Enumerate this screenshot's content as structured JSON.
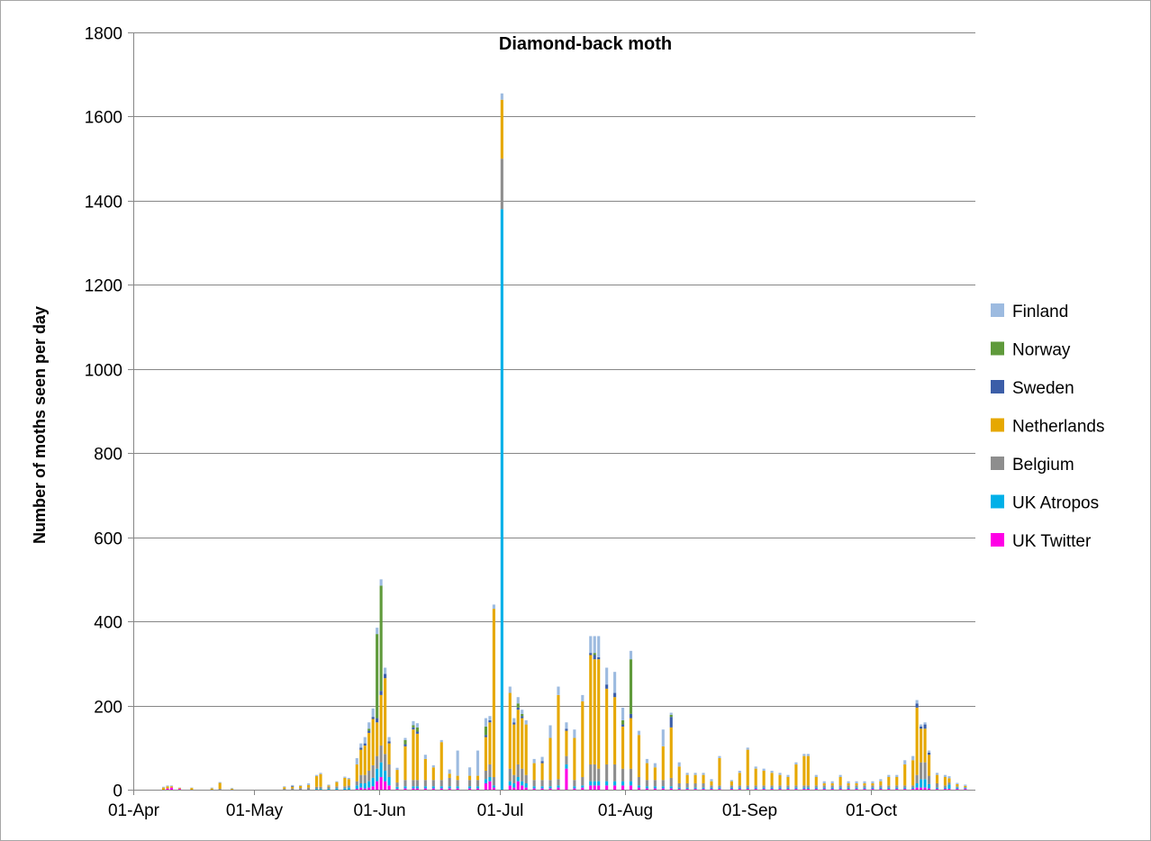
{
  "chart_data": {
    "type": "bar",
    "stacked": true,
    "title": "Diamond-back moth",
    "ylabel": "Number of moths seen per day",
    "xlabel": "",
    "ylim": [
      0,
      1800
    ],
    "yticks": [
      0,
      200,
      400,
      600,
      800,
      1000,
      1200,
      1400,
      1600,
      1800
    ],
    "xlim": [
      "01-Apr",
      "26-Oct"
    ],
    "xtick_labels": [
      "01-Apr",
      "01-May",
      "01-Jun",
      "01-Jul",
      "01-Aug",
      "01-Sep",
      "01-Oct"
    ],
    "grid": "horizontal",
    "legend_position": "right",
    "series_order": [
      "UK Twitter",
      "UK Atropos",
      "Belgium",
      "Netherlands",
      "Sweden",
      "Norway",
      "Finland"
    ],
    "legend_order": [
      "Finland",
      "Norway",
      "Sweden",
      "Netherlands",
      "Belgium",
      "UK Atropos",
      "UK Twitter"
    ],
    "colors": {
      "Finland": "#9dbbe0",
      "Norway": "#5f9a3b",
      "Sweden": "#3c5ea8",
      "Netherlands": "#e6a800",
      "Belgium": "#8e8e8e",
      "UK Atropos": "#00b0e8",
      "UK Twitter": "#ff00e6"
    },
    "days": [
      {
        "date": "08-Apr",
        "values": [
          0,
          0,
          0,
          5,
          0,
          0,
          2
        ]
      },
      {
        "date": "09-Apr",
        "values": [
          3,
          0,
          0,
          5,
          0,
          0,
          2
        ]
      },
      {
        "date": "10-Apr",
        "values": [
          5,
          0,
          0,
          3,
          0,
          0,
          2
        ]
      },
      {
        "date": "12-Apr",
        "values": [
          2,
          0,
          0,
          2,
          0,
          0,
          1
        ]
      },
      {
        "date": "15-Apr",
        "values": [
          0,
          0,
          0,
          4,
          0,
          0,
          1
        ]
      },
      {
        "date": "20-Apr",
        "values": [
          0,
          0,
          0,
          3,
          0,
          0,
          2
        ]
      },
      {
        "date": "22-Apr",
        "values": [
          0,
          0,
          2,
          14,
          0,
          0,
          2
        ]
      },
      {
        "date": "25-Apr",
        "values": [
          0,
          0,
          0,
          2,
          0,
          0,
          2
        ]
      },
      {
        "date": "08-May",
        "values": [
          0,
          0,
          2,
          4,
          0,
          0,
          2
        ]
      },
      {
        "date": "10-May",
        "values": [
          0,
          0,
          3,
          4,
          2,
          0,
          2
        ]
      },
      {
        "date": "12-May",
        "values": [
          0,
          0,
          4,
          5,
          0,
          0,
          2
        ]
      },
      {
        "date": "14-May",
        "values": [
          0,
          0,
          5,
          6,
          0,
          0,
          4
        ]
      },
      {
        "date": "16-May",
        "values": [
          0,
          2,
          5,
          25,
          0,
          0,
          3
        ]
      },
      {
        "date": "17-May",
        "values": [
          0,
          2,
          5,
          30,
          0,
          0,
          3
        ]
      },
      {
        "date": "19-May",
        "values": [
          0,
          2,
          5,
          3,
          0,
          0,
          2
        ]
      },
      {
        "date": "21-May",
        "values": [
          0,
          3,
          5,
          10,
          0,
          0,
          2
        ]
      },
      {
        "date": "23-May",
        "values": [
          0,
          3,
          5,
          20,
          0,
          0,
          3
        ]
      },
      {
        "date": "24-May",
        "values": [
          0,
          5,
          5,
          15,
          0,
          0,
          3
        ]
      },
      {
        "date": "26-May",
        "values": [
          2,
          8,
          10,
          40,
          0,
          0,
          15
        ]
      },
      {
        "date": "27-May",
        "values": [
          5,
          10,
          20,
          60,
          5,
          0,
          10
        ]
      },
      {
        "date": "28-May",
        "values": [
          3,
          12,
          20,
          70,
          5,
          0,
          15
        ]
      },
      {
        "date": "29-May",
        "values": [
          5,
          15,
          25,
          90,
          5,
          5,
          15
        ]
      },
      {
        "date": "30-May",
        "values": [
          8,
          20,
          30,
          110,
          5,
          0,
          20
        ]
      },
      {
        "date": "31-May",
        "values": [
          20,
          30,
          30,
          80,
          10,
          200,
          15
        ]
      },
      {
        "date": "01-Jun",
        "values": [
          30,
          35,
          40,
          120,
          10,
          250,
          15
        ]
      },
      {
        "date": "02-Jun",
        "values": [
          20,
          25,
          40,
          180,
          10,
          0,
          15
        ]
      },
      {
        "date": "03-Jun",
        "values": [
          10,
          20,
          30,
          50,
          5,
          0,
          10
        ]
      },
      {
        "date": "05-Jun",
        "values": [
          2,
          5,
          10,
          30,
          0,
          0,
          5
        ]
      },
      {
        "date": "07-Jun",
        "values": [
          3,
          5,
          15,
          80,
          5,
          10,
          5
        ]
      },
      {
        "date": "09-Jun",
        "values": [
          3,
          5,
          15,
          120,
          5,
          5,
          10
        ]
      },
      {
        "date": "10-Jun",
        "values": [
          3,
          5,
          15,
          110,
          5,
          10,
          10
        ]
      },
      {
        "date": "12-Jun",
        "values": [
          3,
          5,
          15,
          50,
          0,
          0,
          10
        ]
      },
      {
        "date": "14-Jun",
        "values": [
          3,
          5,
          15,
          30,
          0,
          0,
          5
        ]
      },
      {
        "date": "16-Jun",
        "values": [
          3,
          5,
          15,
          90,
          0,
          0,
          5
        ]
      },
      {
        "date": "18-Jun",
        "values": [
          3,
          5,
          20,
          10,
          0,
          0,
          10
        ]
      },
      {
        "date": "20-Jun",
        "values": [
          3,
          5,
          15,
          10,
          0,
          0,
          60
        ]
      },
      {
        "date": "23-Jun",
        "values": [
          3,
          5,
          15,
          10,
          0,
          0,
          20
        ]
      },
      {
        "date": "25-Jun",
        "values": [
          3,
          5,
          15,
          10,
          0,
          0,
          60
        ]
      },
      {
        "date": "27-Jun",
        "values": [
          15,
          10,
          20,
          80,
          5,
          20,
          20
        ]
      },
      {
        "date": "28-Jun",
        "values": [
          20,
          10,
          30,
          100,
          5,
          0,
          10
        ]
      },
      {
        "date": "29-Jun",
        "values": [
          5,
          5,
          20,
          400,
          0,
          0,
          10
        ]
      },
      {
        "date": "01-Jul",
        "values": [
          0,
          1380,
          120,
          140,
          0,
          0,
          15
        ]
      },
      {
        "date": "03-Jul",
        "values": [
          10,
          10,
          30,
          180,
          0,
          0,
          15
        ]
      },
      {
        "date": "04-Jul",
        "values": [
          5,
          10,
          20,
          120,
          5,
          0,
          10
        ]
      },
      {
        "date": "05-Jul",
        "values": [
          20,
          10,
          30,
          130,
          5,
          10,
          15
        ]
      },
      {
        "date": "06-Jul",
        "values": [
          10,
          10,
          30,
          120,
          5,
          5,
          10
        ]
      },
      {
        "date": "07-Jul",
        "values": [
          5,
          10,
          20,
          120,
          0,
          0,
          10
        ]
      },
      {
        "date": "09-Jul",
        "values": [
          3,
          5,
          15,
          40,
          0,
          0,
          10
        ]
      },
      {
        "date": "11-Jul",
        "values": [
          3,
          5,
          15,
          40,
          5,
          0,
          10
        ]
      },
      {
        "date": "13-Jul",
        "values": [
          3,
          5,
          15,
          100,
          0,
          0,
          30
        ]
      },
      {
        "date": "15-Jul",
        "values": [
          5,
          5,
          15,
          200,
          0,
          0,
          20
        ]
      },
      {
        "date": "17-Jul",
        "values": [
          50,
          10,
          20,
          60,
          5,
          0,
          15
        ]
      },
      {
        "date": "19-Jul",
        "values": [
          3,
          5,
          15,
          100,
          0,
          0,
          20
        ]
      },
      {
        "date": "21-Jul",
        "values": [
          5,
          5,
          20,
          180,
          0,
          0,
          15
        ]
      },
      {
        "date": "23-Jul",
        "values": [
          10,
          10,
          40,
          260,
          5,
          0,
          40
        ]
      },
      {
        "date": "24-Jul",
        "values": [
          10,
          10,
          40,
          250,
          10,
          5,
          40
        ]
      },
      {
        "date": "25-Jul",
        "values": [
          10,
          10,
          30,
          260,
          5,
          0,
          50
        ]
      },
      {
        "date": "27-Jul",
        "values": [
          10,
          10,
          40,
          180,
          10,
          0,
          40
        ]
      },
      {
        "date": "29-Jul",
        "values": [
          10,
          10,
          40,
          160,
          10,
          0,
          50
        ]
      },
      {
        "date": "31-Jul",
        "values": [
          10,
          10,
          30,
          100,
          5,
          10,
          30
        ]
      },
      {
        "date": "02-Aug",
        "values": [
          10,
          10,
          30,
          120,
          10,
          130,
          20
        ]
      },
      {
        "date": "04-Aug",
        "values": [
          5,
          5,
          20,
          100,
          0,
          0,
          10
        ]
      },
      {
        "date": "06-Aug",
        "values": [
          3,
          5,
          15,
          40,
          0,
          0,
          10
        ]
      },
      {
        "date": "08-Aug",
        "values": [
          3,
          5,
          15,
          30,
          0,
          0,
          10
        ]
      },
      {
        "date": "10-Aug",
        "values": [
          3,
          5,
          15,
          80,
          0,
          0,
          40
        ]
      },
      {
        "date": "12-Aug",
        "values": [
          3,
          5,
          20,
          120,
          25,
          5,
          5
        ]
      },
      {
        "date": "14-Aug",
        "values": [
          2,
          3,
          10,
          40,
          0,
          0,
          10
        ]
      },
      {
        "date": "16-Aug",
        "values": [
          2,
          3,
          10,
          20,
          0,
          0,
          5
        ]
      },
      {
        "date": "18-Aug",
        "values": [
          2,
          3,
          10,
          20,
          0,
          0,
          5
        ]
      },
      {
        "date": "20-Aug",
        "values": [
          2,
          3,
          10,
          20,
          0,
          0,
          5
        ]
      },
      {
        "date": "22-Aug",
        "values": [
          2,
          3,
          5,
          10,
          0,
          0,
          5
        ]
      },
      {
        "date": "24-Aug",
        "values": [
          2,
          3,
          5,
          65,
          0,
          0,
          5
        ]
      },
      {
        "date": "27-Aug",
        "values": [
          2,
          3,
          5,
          10,
          0,
          0,
          3
        ]
      },
      {
        "date": "29-Aug",
        "values": [
          2,
          3,
          5,
          30,
          0,
          0,
          5
        ]
      },
      {
        "date": "31-Aug",
        "values": [
          2,
          3,
          5,
          85,
          0,
          0,
          5
        ]
      },
      {
        "date": "02-Sep",
        "values": [
          2,
          3,
          5,
          40,
          0,
          0,
          5
        ]
      },
      {
        "date": "04-Sep",
        "values": [
          2,
          3,
          5,
          35,
          0,
          0,
          5
        ]
      },
      {
        "date": "06-Sep",
        "values": [
          2,
          3,
          5,
          30,
          0,
          0,
          5
        ]
      },
      {
        "date": "08-Sep",
        "values": [
          2,
          3,
          5,
          25,
          0,
          0,
          5
        ]
      },
      {
        "date": "10-Sep",
        "values": [
          2,
          3,
          5,
          20,
          0,
          0,
          5
        ]
      },
      {
        "date": "12-Sep",
        "values": [
          2,
          3,
          5,
          50,
          0,
          0,
          5
        ]
      },
      {
        "date": "14-Sep",
        "values": [
          2,
          3,
          5,
          70,
          0,
          0,
          5
        ]
      },
      {
        "date": "15-Sep",
        "values": [
          2,
          3,
          5,
          70,
          0,
          0,
          5
        ]
      },
      {
        "date": "17-Sep",
        "values": [
          2,
          3,
          5,
          20,
          0,
          0,
          5
        ]
      },
      {
        "date": "19-Sep",
        "values": [
          2,
          3,
          5,
          5,
          0,
          0,
          5
        ]
      },
      {
        "date": "21-Sep",
        "values": [
          2,
          3,
          5,
          5,
          0,
          0,
          5
        ]
      },
      {
        "date": "23-Sep",
        "values": [
          2,
          3,
          5,
          20,
          0,
          0,
          5
        ]
      },
      {
        "date": "25-Sep",
        "values": [
          2,
          3,
          5,
          5,
          0,
          0,
          5
        ]
      },
      {
        "date": "27-Sep",
        "values": [
          2,
          3,
          5,
          5,
          0,
          0,
          5
        ]
      },
      {
        "date": "29-Sep",
        "values": [
          2,
          3,
          5,
          5,
          0,
          0,
          5
        ]
      },
      {
        "date": "01-Oct",
        "values": [
          2,
          3,
          5,
          5,
          0,
          0,
          5
        ]
      },
      {
        "date": "03-Oct",
        "values": [
          2,
          3,
          5,
          10,
          0,
          0,
          5
        ]
      },
      {
        "date": "05-Oct",
        "values": [
          2,
          3,
          5,
          20,
          0,
          0,
          5
        ]
      },
      {
        "date": "07-Oct",
        "values": [
          2,
          3,
          5,
          20,
          0,
          0,
          5
        ]
      },
      {
        "date": "09-Oct",
        "values": [
          2,
          3,
          5,
          50,
          0,
          0,
          10
        ]
      },
      {
        "date": "11-Oct",
        "values": [
          2,
          3,
          5,
          60,
          0,
          0,
          10
        ]
      },
      {
        "date": "12-Oct",
        "values": [
          5,
          10,
          20,
          160,
          10,
          0,
          8
        ]
      },
      {
        "date": "13-Oct",
        "values": [
          5,
          20,
          40,
          80,
          5,
          0,
          5
        ]
      },
      {
        "date": "14-Oct",
        "values": [
          5,
          20,
          40,
          80,
          10,
          0,
          5
        ]
      },
      {
        "date": "15-Oct",
        "values": [
          3,
          10,
          20,
          50,
          5,
          0,
          5
        ]
      },
      {
        "date": "17-Oct",
        "values": [
          2,
          3,
          10,
          20,
          0,
          0,
          5
        ]
      },
      {
        "date": "19-Oct",
        "values": [
          2,
          3,
          5,
          20,
          0,
          0,
          5
        ]
      },
      {
        "date": "20-Oct",
        "values": [
          2,
          10,
          5,
          10,
          0,
          0,
          5
        ]
      },
      {
        "date": "22-Oct",
        "values": [
          2,
          3,
          3,
          5,
          0,
          0,
          3
        ]
      },
      {
        "date": "24-Oct",
        "values": [
          2,
          2,
          2,
          3,
          0,
          0,
          3
        ]
      }
    ]
  }
}
